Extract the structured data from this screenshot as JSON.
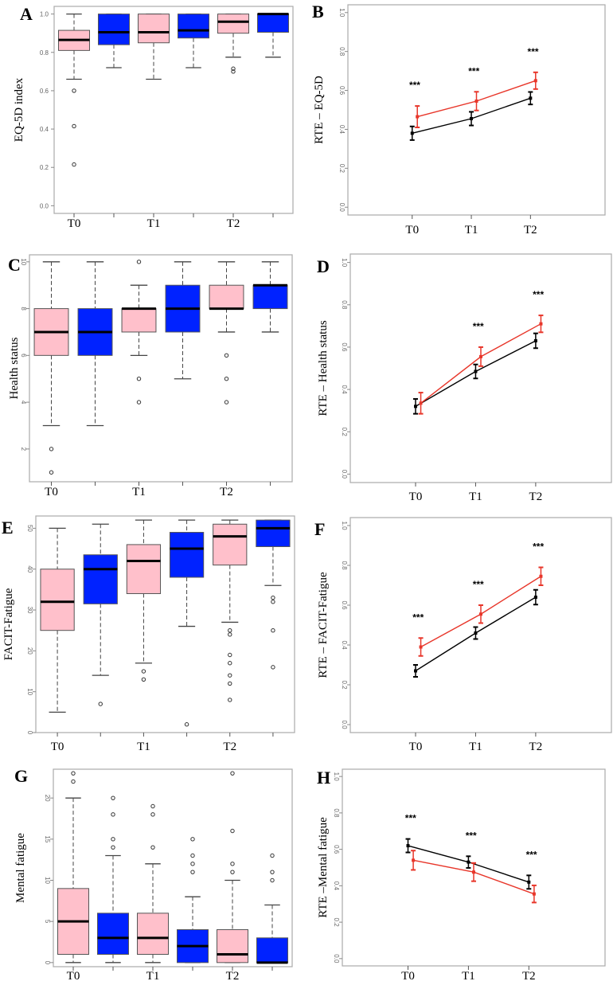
{
  "colors": {
    "pink": "#ffc0cb",
    "blue": "#0022ff",
    "black": "#000000",
    "red": "#e8362a"
  },
  "chart_data": [
    {
      "panel": "A",
      "type": "box",
      "ylabel": "EQ-5D index",
      "ylim": [
        0,
        1
      ],
      "yticks": [
        "0.0",
        "0.2",
        "0.4",
        "0.6",
        "0.8",
        "1.0"
      ],
      "ytick_values": [
        0,
        0.2,
        0.4,
        0.6,
        0.8,
        1.0
      ],
      "tick_rotation": "horizontal",
      "categories": [
        "T0",
        "T1",
        "T2"
      ],
      "boxes": [
        {
          "group": "pink",
          "low": 0.66,
          "q1": 0.81,
          "median": 0.865,
          "q3": 0.915,
          "high": 1.0,
          "outliers": [
            0.6,
            0.415,
            0.215
          ]
        },
        {
          "group": "blue",
          "low": 0.72,
          "q1": 0.84,
          "median": 0.905,
          "q3": 1.0,
          "high": 1.0,
          "outliers": []
        },
        {
          "group": "pink",
          "low": 0.66,
          "q1": 0.85,
          "median": 0.905,
          "q3": 1.0,
          "high": 1.0,
          "outliers": []
        },
        {
          "group": "blue",
          "low": 0.72,
          "q1": 0.875,
          "median": 0.915,
          "q3": 1.0,
          "high": 1.0,
          "outliers": []
        },
        {
          "group": "pink",
          "low": 0.775,
          "q1": 0.9,
          "median": 0.96,
          "q3": 1.0,
          "high": 1.0,
          "outliers": [
            0.715,
            0.7
          ]
        },
        {
          "group": "blue",
          "low": 0.775,
          "q1": 0.905,
          "median": 1.0,
          "q3": 1.0,
          "high": 1.0,
          "outliers": []
        }
      ]
    },
    {
      "panel": "B",
      "type": "line",
      "ylabel": "RTE – EQ-5D",
      "ylim": [
        0,
        1
      ],
      "yticks": [
        "0.0",
        "0.2",
        "0.4",
        "0.6",
        "0.8",
        "1.0"
      ],
      "ytick_values": [
        0,
        0.2,
        0.4,
        0.6,
        0.8,
        1.0
      ],
      "categories": [
        "T0",
        "T1",
        "T2"
      ],
      "series": [
        {
          "name": "black",
          "values": [
            0.38,
            0.455,
            0.56
          ],
          "errors": [
            0.035,
            0.035,
            0.032
          ]
        },
        {
          "name": "red",
          "values": [
            0.465,
            0.545,
            0.65
          ],
          "errors": [
            0.055,
            0.048,
            0.043
          ]
        }
      ],
      "annotations": [
        {
          "x": "T0",
          "text": "***"
        },
        {
          "x": "T1",
          "text": "***"
        },
        {
          "x": "T2",
          "text": "***"
        }
      ]
    },
    {
      "panel": "C",
      "type": "box",
      "ylabel": "Health status",
      "ylim": [
        0.6,
        10.3
      ],
      "yticks": [
        "2",
        "4",
        "6",
        "8",
        "10"
      ],
      "ytick_values": [
        2,
        4,
        6,
        8,
        10
      ],
      "tick_rotation": "vertical",
      "categories": [
        "T0",
        "T1",
        "T2"
      ],
      "boxes": [
        {
          "group": "pink",
          "low": 3,
          "q1": 6,
          "median": 7,
          "q3": 8,
          "high": 10,
          "outliers": [
            2,
            1
          ]
        },
        {
          "group": "blue",
          "low": 3,
          "q1": 6,
          "median": 7,
          "q3": 8,
          "high": 10,
          "outliers": []
        },
        {
          "group": "pink",
          "low": 6,
          "q1": 7,
          "median": 8,
          "q3": 8,
          "high": 9,
          "outliers": [
            10,
            5,
            4
          ]
        },
        {
          "group": "blue",
          "low": 5,
          "q1": 7,
          "median": 8,
          "q3": 9,
          "high": 10,
          "outliers": []
        },
        {
          "group": "pink",
          "low": 7,
          "q1": 8,
          "median": 8,
          "q3": 9,
          "high": 10,
          "outliers": [
            6,
            5,
            4
          ]
        },
        {
          "group": "blue",
          "low": 7,
          "q1": 8,
          "median": 9,
          "q3": 9,
          "high": 10,
          "outliers": []
        }
      ]
    },
    {
      "panel": "D",
      "type": "line",
      "ylabel": "RTE – Health status",
      "ylim": [
        0,
        1
      ],
      "yticks": [
        "0.0",
        "0.2",
        "0.4",
        "0.6",
        "0.8",
        "1.0"
      ],
      "ytick_values": [
        0,
        0.2,
        0.4,
        0.6,
        0.8,
        1.0
      ],
      "categories": [
        "T0",
        "T1",
        "T2"
      ],
      "series": [
        {
          "name": "black",
          "values": [
            0.32,
            0.485,
            0.63
          ],
          "errors": [
            0.035,
            0.033,
            0.035
          ]
        },
        {
          "name": "red",
          "values": [
            0.335,
            0.555,
            0.71
          ],
          "errors": [
            0.05,
            0.045,
            0.04
          ]
        }
      ],
      "annotations": [
        {
          "x": "T1",
          "text": "***"
        },
        {
          "x": "T2",
          "text": "***"
        }
      ]
    },
    {
      "panel": "E",
      "type": "box",
      "ylabel": "FACIT-Fatigue",
      "ylim": [
        0,
        53
      ],
      "yticks": [
        "0",
        "10",
        "20",
        "30",
        "40",
        "50"
      ],
      "ytick_values": [
        0,
        10,
        20,
        30,
        40,
        50
      ],
      "tick_rotation": "vertical",
      "categories": [
        "T0",
        "T1",
        "T2"
      ],
      "boxes": [
        {
          "group": "pink",
          "low": 5,
          "q1": 25,
          "median": 32,
          "q3": 40,
          "high": 50,
          "outliers": []
        },
        {
          "group": "blue",
          "low": 14,
          "q1": 31.5,
          "median": 40,
          "q3": 43.5,
          "high": 51,
          "outliers": [
            7
          ]
        },
        {
          "group": "pink",
          "low": 17,
          "q1": 34,
          "median": 42,
          "q3": 46,
          "high": 52,
          "outliers": [
            15,
            13
          ]
        },
        {
          "group": "blue",
          "low": 26,
          "q1": 38,
          "median": 45,
          "q3": 49,
          "high": 52,
          "outliers": [
            2
          ]
        },
        {
          "group": "pink",
          "low": 27,
          "q1": 41,
          "median": 48,
          "q3": 51,
          "high": 52,
          "outliers": [
            25,
            24,
            19,
            17,
            14,
            12,
            8
          ]
        },
        {
          "group": "blue",
          "low": 36,
          "q1": 45.5,
          "median": 50,
          "q3": 52,
          "high": 52,
          "outliers": [
            33,
            32,
            25,
            16
          ]
        }
      ]
    },
    {
      "panel": "F",
      "type": "line",
      "ylabel": "RTE – FACIT-Fatigue",
      "ylim": [
        0,
        1
      ],
      "yticks": [
        "0.0",
        "0.2",
        "0.4",
        "0.6",
        "0.8",
        "1.0"
      ],
      "ytick_values": [
        0,
        0.2,
        0.4,
        0.6,
        0.8,
        1.0
      ],
      "categories": [
        "T0",
        "T1",
        "T2"
      ],
      "series": [
        {
          "name": "black",
          "values": [
            0.27,
            0.46,
            0.64
          ],
          "errors": [
            0.03,
            0.03,
            0.037
          ]
        },
        {
          "name": "red",
          "values": [
            0.39,
            0.555,
            0.745
          ],
          "errors": [
            0.045,
            0.045,
            0.045
          ]
        }
      ],
      "annotations": [
        {
          "x": "T0",
          "text": "***"
        },
        {
          "x": "T1",
          "text": "***"
        },
        {
          "x": "T2",
          "text": "***"
        }
      ]
    },
    {
      "panel": "G",
      "type": "box",
      "ylabel": "Mental fatigue",
      "ylim": [
        -0.5,
        23.5
      ],
      "yticks": [
        "0",
        "5",
        "10",
        "15",
        "20"
      ],
      "ytick_values": [
        0,
        5,
        10,
        15,
        20
      ],
      "tick_rotation": "vertical",
      "categories": [
        "T0",
        "T1",
        "T2"
      ],
      "boxes": [
        {
          "group": "pink",
          "low": 0,
          "q1": 1,
          "median": 5,
          "q3": 9,
          "high": 20,
          "outliers": [
            23,
            22
          ]
        },
        {
          "group": "blue",
          "low": 0,
          "q1": 1,
          "median": 3,
          "q3": 6,
          "high": 13,
          "outliers": [
            20,
            18,
            15,
            14
          ]
        },
        {
          "group": "pink",
          "low": 0,
          "q1": 1,
          "median": 3,
          "q3": 6,
          "high": 12,
          "outliers": [
            19,
            18,
            14
          ]
        },
        {
          "group": "blue",
          "low": 0,
          "q1": 0,
          "median": 2,
          "q3": 4,
          "high": 8,
          "outliers": [
            15,
            13,
            12,
            11
          ]
        },
        {
          "group": "pink",
          "low": 0,
          "q1": 0,
          "median": 1,
          "q3": 4,
          "high": 10,
          "outliers": [
            23,
            16,
            12,
            11
          ]
        },
        {
          "group": "blue",
          "low": 0,
          "q1": 0,
          "median": 0,
          "q3": 3,
          "high": 7,
          "outliers": [
            13,
            11,
            10
          ]
        }
      ]
    },
    {
      "panel": "H",
      "type": "line",
      "ylabel": "RTE –Mental fatigue",
      "ylim": [
        0,
        1
      ],
      "yticks": [
        "0.0",
        "0.2",
        "0.4",
        "0.6",
        "0.8",
        "1.0"
      ],
      "ytick_values": [
        0,
        0.2,
        0.4,
        0.6,
        0.8,
        1.0
      ],
      "categories": [
        "T0",
        "T1",
        "T2"
      ],
      "series": [
        {
          "name": "black",
          "values": [
            0.62,
            0.53,
            0.42
          ],
          "errors": [
            0.037,
            0.032,
            0.037
          ]
        },
        {
          "name": "red",
          "values": [
            0.54,
            0.475,
            0.355
          ],
          "errors": [
            0.053,
            0.05,
            0.047
          ]
        }
      ],
      "annotations": [
        {
          "x": "T0",
          "text": "***"
        },
        {
          "x": "T1",
          "text": "***"
        },
        {
          "x": "T2",
          "text": "***"
        }
      ]
    }
  ]
}
